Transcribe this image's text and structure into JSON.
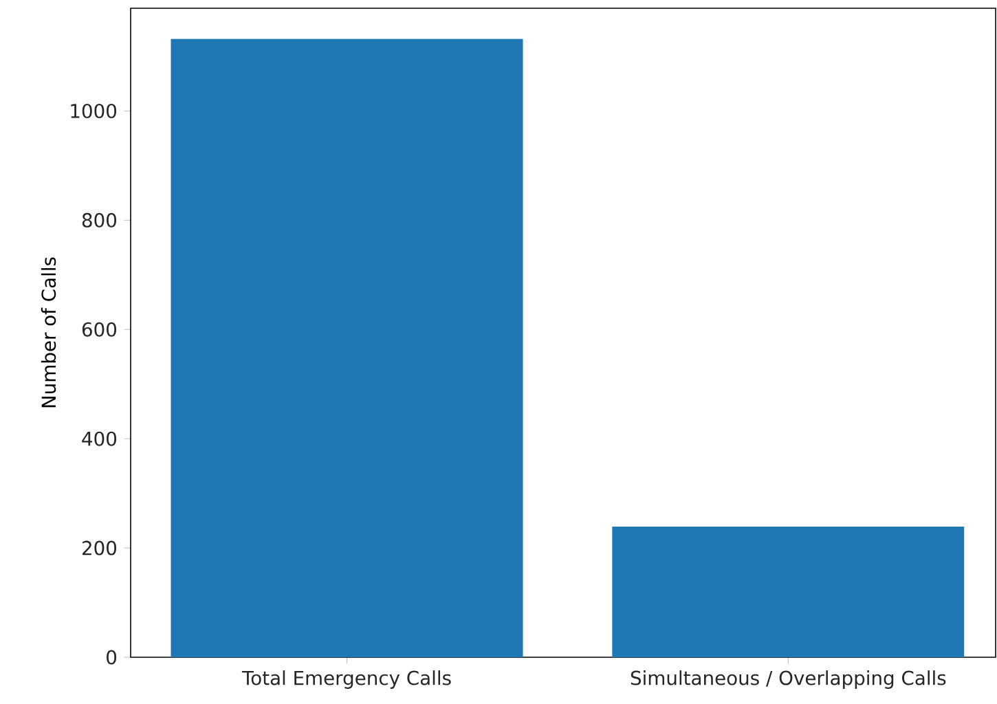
{
  "chart_data": {
    "type": "bar",
    "ylabel": "Number of Calls",
    "categories": [
      "Total Emergency Calls",
      "Simultaneous / Overlapping Calls"
    ],
    "values": [
      1132,
      239
    ],
    "color": "#1f77b4",
    "ylim": [
      0,
      1188
    ],
    "yticks": [
      0,
      200,
      400,
      600,
      800,
      1000
    ],
    "grid": false
  }
}
